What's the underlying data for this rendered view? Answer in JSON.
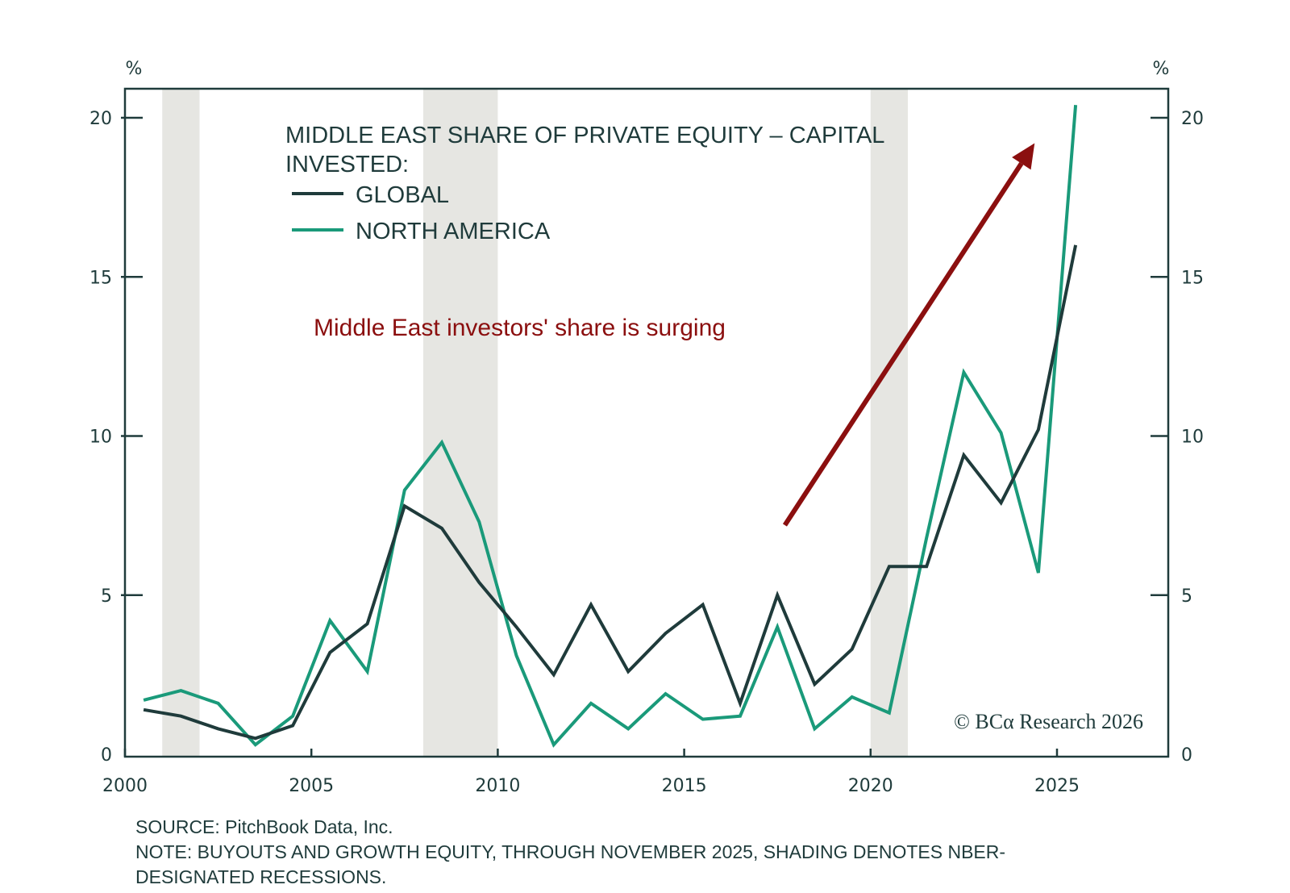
{
  "chart_data": {
    "type": "line",
    "title_lines": [
      "MIDDLE EAST SHARE OF PRIVATE EQUITY – CAPITAL",
      "INVESTED:"
    ],
    "y_unit_left": "%",
    "y_unit_right": "%",
    "xlim": [
      2000,
      2028
    ],
    "ylim": [
      0,
      21
    ],
    "x_ticks": [
      2000,
      2005,
      2010,
      2015,
      2020,
      2025
    ],
    "x_tick_labels": [
      "2000",
      "2005",
      "2010",
      "2015",
      "2020",
      "2025"
    ],
    "y_ticks": [
      0,
      5,
      10,
      15,
      20
    ],
    "y_tick_labels": [
      "0",
      "5",
      "10",
      "15",
      "20"
    ],
    "grid": false,
    "legend_position": "top-left",
    "recessions": [
      [
        2001,
        2002
      ],
      [
        2008,
        2010
      ],
      [
        2020,
        2021
      ]
    ],
    "series": [
      {
        "name": "GLOBAL",
        "color": "#1f3b3b",
        "x": [
          2000.5,
          2001.5,
          2002.5,
          2003.5,
          2004.5,
          2005.5,
          2006.5,
          2007.5,
          2008.5,
          2009.5,
          2010.5,
          2011.5,
          2012.5,
          2013.5,
          2014.5,
          2015.5,
          2016.5,
          2017.5,
          2018.5,
          2019.5,
          2020.5,
          2021.5,
          2022.5,
          2023.5,
          2024.5,
          2025.5
        ],
        "values": [
          1.4,
          1.2,
          0.8,
          0.5,
          0.9,
          3.2,
          4.1,
          7.8,
          7.1,
          5.4,
          4.0,
          2.5,
          4.7,
          2.6,
          3.8,
          4.7,
          1.6,
          5.0,
          2.2,
          3.3,
          5.9,
          5.9,
          9.4,
          7.9,
          10.2,
          16.0
        ]
      },
      {
        "name": "NORTH AMERICA",
        "color": "#1a9a7a",
        "x": [
          2000.5,
          2001.5,
          2002.5,
          2003.5,
          2004.5,
          2005.5,
          2006.5,
          2007.5,
          2008.5,
          2009.5,
          2010.5,
          2011.5,
          2012.5,
          2013.5,
          2014.5,
          2015.5,
          2016.5,
          2017.5,
          2018.5,
          2019.5,
          2020.5,
          2021.5,
          2022.5,
          2023.5,
          2024.5,
          2025.5
        ],
        "values": [
          1.7,
          2.0,
          1.6,
          0.3,
          1.2,
          4.2,
          2.6,
          8.3,
          9.8,
          7.3,
          3.1,
          0.3,
          1.6,
          0.8,
          1.9,
          1.1,
          1.2,
          4.0,
          0.8,
          1.8,
          1.3,
          6.8,
          12.0,
          10.1,
          5.7,
          20.4
        ]
      }
    ],
    "annotation": {
      "text": "Middle East investors' share is surging",
      "color": "#8b0f0f"
    },
    "arrow": {
      "color": "#8b0f0f",
      "from": [
        2017.7,
        7.2
      ],
      "to": [
        2024.4,
        19.2
      ]
    },
    "copyright": "© BCα Research 2026"
  },
  "footer": {
    "source": "SOURCE: PitchBook Data, Inc.",
    "note_line1": "NOTE: BUYOUTS AND GROWTH EQUITY, THROUGH NOVEMBER 2025, SHADING DENOTES NBER-",
    "note_line2": "DESIGNATED RECESSIONS."
  }
}
